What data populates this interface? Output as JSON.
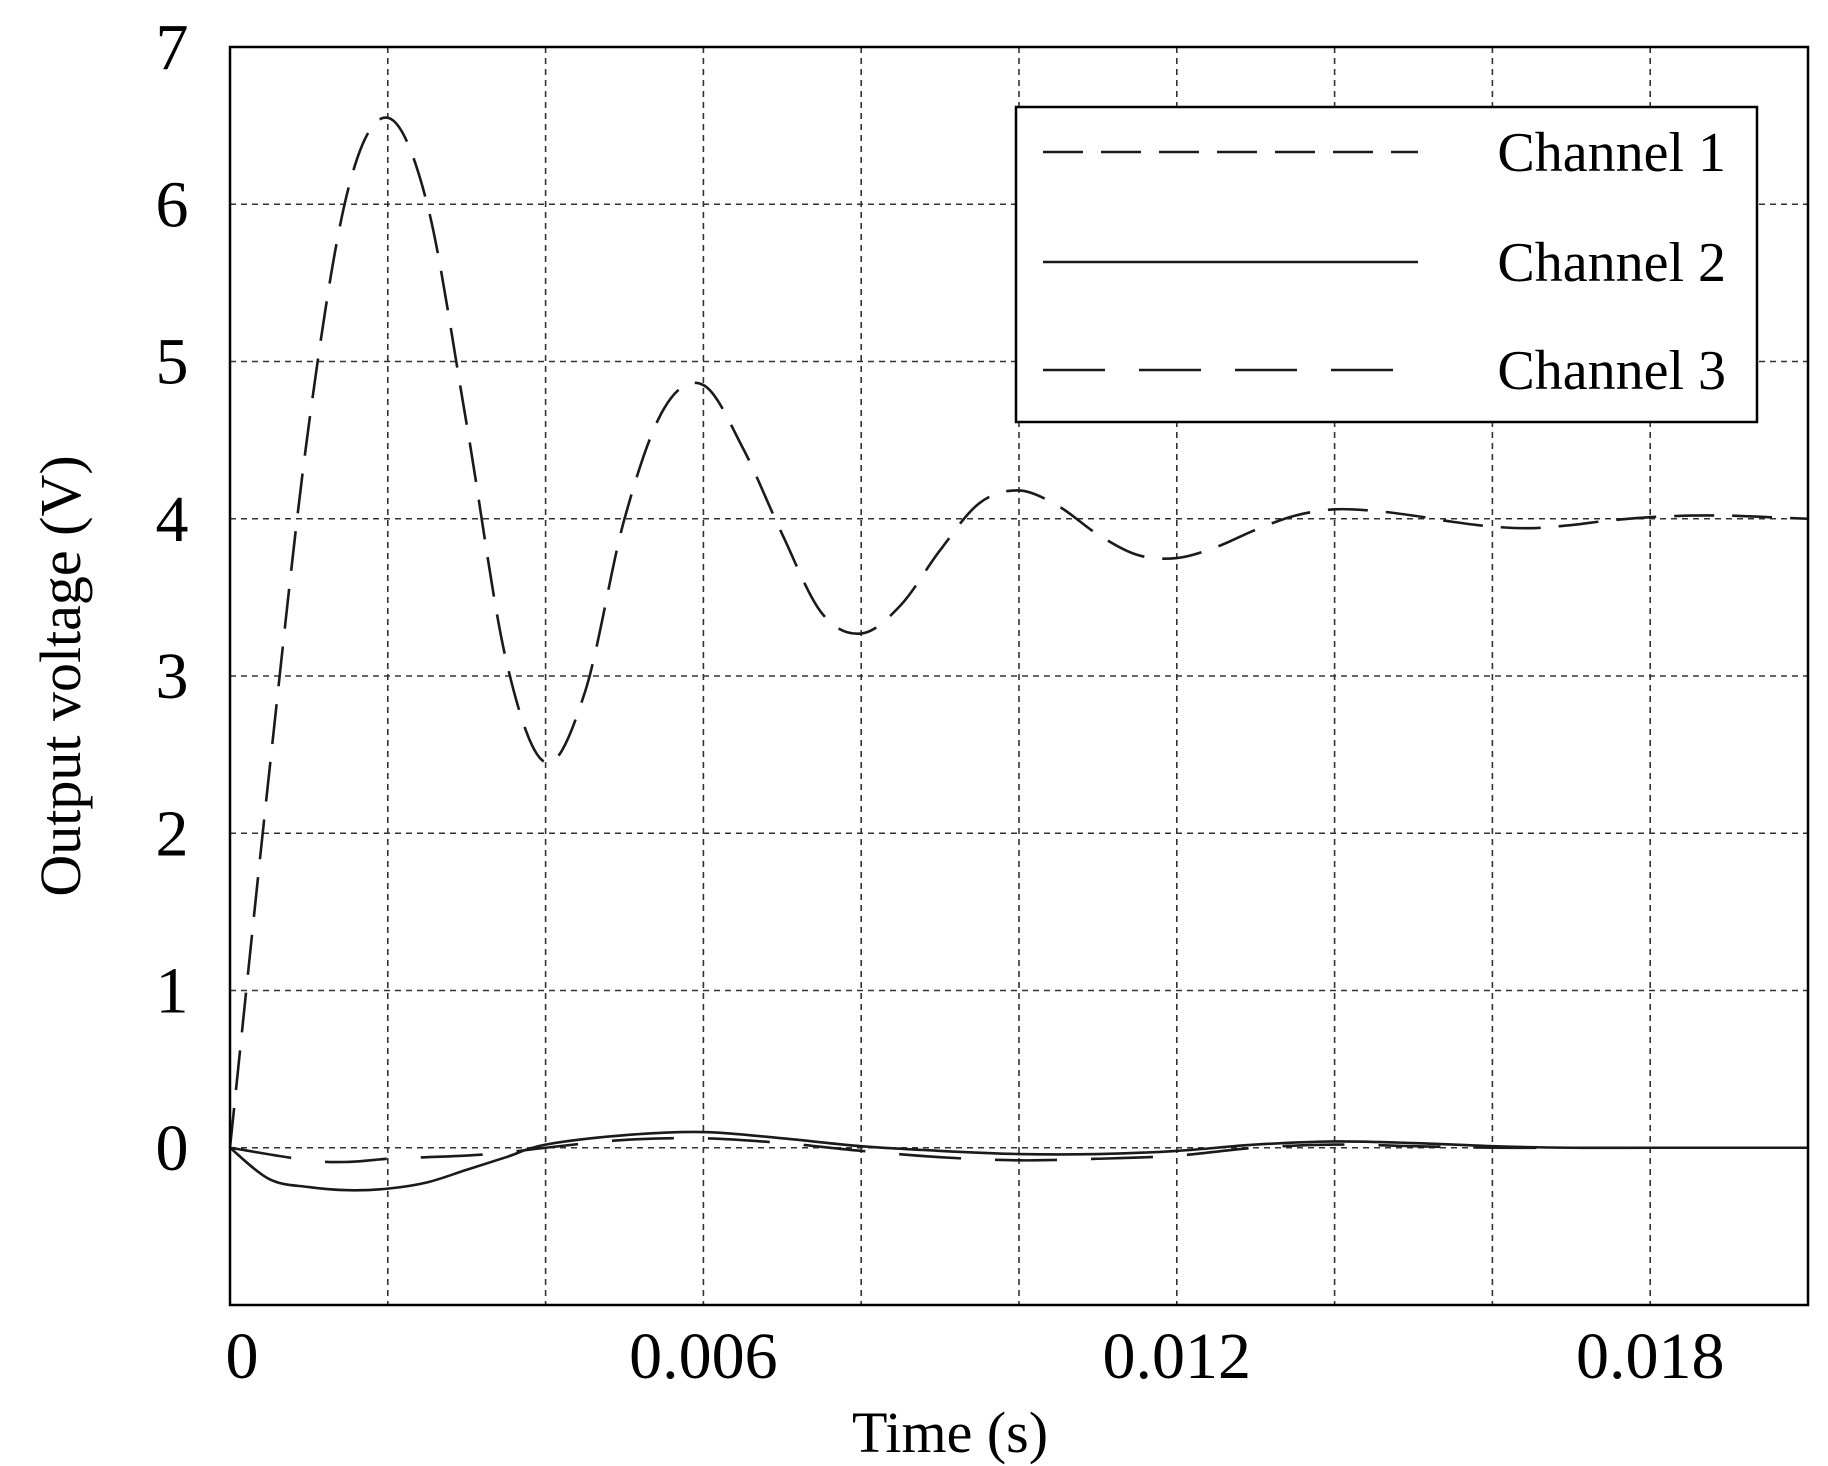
{
  "chart_data": {
    "type": "line",
    "title": "",
    "xlabel": "Time (s)",
    "ylabel": "Output voltage (V)",
    "xlim": [
      0,
      0.02
    ],
    "ylim": [
      -1,
      7
    ],
    "x_ticks": [
      0,
      0.006,
      0.012,
      0.018
    ],
    "x_tick_labels": [
      "0",
      "0.006",
      "0.012",
      "0.018"
    ],
    "y_ticks": [
      0,
      1,
      2,
      3,
      4,
      5,
      6,
      7
    ],
    "y_tick_labels": [
      "0",
      "1",
      "2",
      "3",
      "4",
      "5",
      "6",
      "7"
    ],
    "grid": true,
    "grid_style": "dashed",
    "x_grid_step": 0.002,
    "y_grid_step": 1,
    "legend_position": "top-right",
    "colors": {
      "line": "#1a1a1a",
      "grid": "#333333",
      "axes": "#000000"
    },
    "series": [
      {
        "name": "Channel 1",
        "dash": "medium-dashed",
        "x": [
          0,
          0.0005,
          0.001,
          0.0015,
          0.002,
          0.0025,
          0.003,
          0.0035,
          0.004,
          0.0045,
          0.005,
          0.0055,
          0.006,
          0.0065,
          0.007,
          0.0075,
          0.008,
          0.0085,
          0.009,
          0.0095,
          0.01,
          0.0105,
          0.011,
          0.0115,
          0.012,
          0.0125,
          0.013,
          0.0135,
          0.014,
          0.0145,
          0.015,
          0.0155,
          0.016,
          0.0165,
          0.017,
          0.0175,
          0.018,
          0.0185,
          0.019,
          0.0195,
          0.02
        ],
        "y": [
          0,
          2.4,
          4.6,
          6.1,
          6.55,
          6.0,
          4.6,
          3.1,
          2.45,
          2.9,
          4.0,
          4.7,
          4.85,
          4.45,
          3.9,
          3.4,
          3.27,
          3.45,
          3.8,
          4.1,
          4.18,
          4.08,
          3.9,
          3.77,
          3.75,
          3.82,
          3.93,
          4.02,
          4.06,
          4.05,
          4.02,
          3.98,
          3.95,
          3.94,
          3.96,
          3.99,
          4.01,
          4.02,
          4.02,
          4.01,
          4.0
        ]
      },
      {
        "name": "Channel 2",
        "dash": "solid",
        "x": [
          0,
          0.0005,
          0.001,
          0.0015,
          0.002,
          0.0025,
          0.003,
          0.0035,
          0.004,
          0.005,
          0.006,
          0.007,
          0.008,
          0.009,
          0.01,
          0.011,
          0.012,
          0.013,
          0.014,
          0.015,
          0.016,
          0.017,
          0.018,
          0.019,
          0.02
        ],
        "y": [
          0,
          -0.2,
          -0.25,
          -0.27,
          -0.26,
          -0.22,
          -0.14,
          -0.06,
          0.02,
          0.08,
          0.1,
          0.06,
          0.01,
          -0.02,
          -0.04,
          -0.04,
          -0.02,
          0.02,
          0.04,
          0.03,
          0.01,
          0.0,
          0.0,
          0.0,
          0.0
        ]
      },
      {
        "name": "Channel 3",
        "dash": "long-dashed",
        "x": [
          0,
          0.001,
          0.0015,
          0.002,
          0.0025,
          0.003,
          0.0035,
          0.004,
          0.005,
          0.006,
          0.007,
          0.008,
          0.009,
          0.01,
          0.011,
          0.012,
          0.013,
          0.014,
          0.015,
          0.016,
          0.017,
          0.018,
          0.019,
          0.02
        ],
        "y": [
          0,
          -0.08,
          -0.09,
          -0.07,
          -0.06,
          -0.05,
          -0.03,
          0.0,
          0.05,
          0.06,
          0.03,
          -0.02,
          -0.06,
          -0.08,
          -0.07,
          -0.05,
          0.0,
          0.02,
          0.01,
          0.0,
          0.0,
          0.0,
          0.0,
          0.0
        ]
      }
    ]
  }
}
